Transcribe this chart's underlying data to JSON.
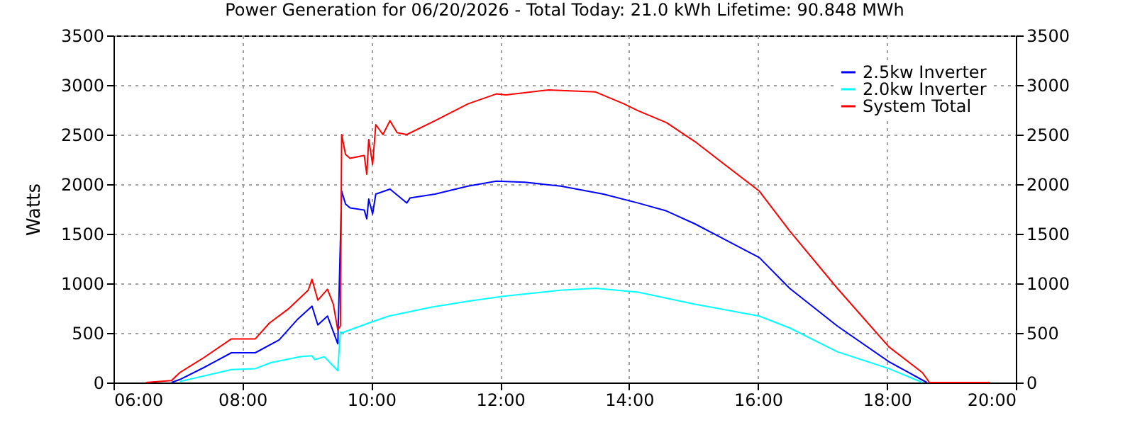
{
  "chart_data": {
    "type": "line",
    "title": "Power Generation for 06/20/2026 - Total Today: 21.0 kWh   Lifetime: 90.848 MWh",
    "ylabel": "Watts",
    "xlim": [
      6,
      20
    ],
    "xticks": [
      {
        "value": 6,
        "label": "06:00"
      },
      {
        "value": 8,
        "label": "08:00"
      },
      {
        "value": 10,
        "label": "10:00"
      },
      {
        "value": 12,
        "label": "12:00"
      },
      {
        "value": 14,
        "label": "14:00"
      },
      {
        "value": 16,
        "label": "16:00"
      },
      {
        "value": 18,
        "label": "18:00"
      },
      {
        "value": 20,
        "label": "20:00"
      }
    ],
    "ylim": [
      0,
      3500
    ],
    "yticks": [
      0,
      500,
      1000,
      1500,
      2000,
      2500,
      3000,
      3500
    ],
    "y2lim": [
      0,
      3500
    ],
    "y2ticks": [
      0,
      500,
      1000,
      1500,
      2000,
      2500,
      3000,
      3500
    ],
    "grid": true,
    "legend": "top right",
    "line_style": "solid",
    "series": [
      {
        "name": "2.5kw Inverter",
        "color": "#0000ff",
        "x": [
          6.9,
          7.03,
          7.4,
          7.83,
          8.2,
          8.57,
          8.86,
          9.08,
          9.17,
          9.32,
          9.48,
          9.54,
          9.6,
          9.67,
          9.89,
          9.93,
          9.96,
          10.02,
          10.07,
          10.29,
          10.55,
          10.6,
          10.99,
          11.5,
          11.94,
          12.38,
          12.94,
          13.6,
          14.14,
          14.58,
          15.02,
          16.02,
          16.49,
          17.23,
          18.03,
          18.62
        ],
        "values": [
          0,
          30,
          150,
          300,
          300,
          430,
          640,
          770,
          580,
          670,
          390,
          1930,
          1800,
          1760,
          1740,
          1650,
          1850,
          1700,
          1900,
          1950,
          1810,
          1860,
          1900,
          1980,
          2030,
          2020,
          1980,
          1900,
          1810,
          1730,
          1600,
          1260,
          950,
          570,
          210,
          0
        ]
      },
      {
        "name": "2.0kw Inverter",
        "color": "#00ffff",
        "x": [
          7.03,
          7.83,
          8.2,
          8.44,
          8.9,
          9.08,
          9.12,
          9.27,
          9.48,
          9.52,
          9.54,
          9.96,
          10.27,
          10.94,
          11.5,
          12.05,
          12.93,
          13.48,
          14.14,
          15.02,
          16.02,
          16.49,
          17.23,
          18.03,
          18.55
        ],
        "values": [
          10,
          130,
          140,
          200,
          260,
          270,
          230,
          260,
          120,
          510,
          500,
          600,
          670,
          760,
          820,
          870,
          930,
          950,
          910,
          790,
          670,
          550,
          310,
          140,
          0
        ]
      },
      {
        "name": "System Total",
        "color": "#ff0000",
        "x": [
          6.5,
          6.9,
          7.03,
          7.4,
          7.83,
          8.2,
          8.42,
          8.71,
          9.02,
          9.08,
          9.17,
          9.32,
          9.41,
          9.48,
          9.52,
          9.54,
          9.6,
          9.67,
          9.89,
          9.93,
          9.96,
          10.02,
          10.07,
          10.18,
          10.29,
          10.4,
          10.55,
          10.99,
          11.5,
          11.94,
          12.09,
          12.75,
          13.48,
          13.92,
          14.14,
          14.58,
          15.02,
          16.02,
          16.49,
          17.23,
          18.03,
          18.55,
          18.66,
          19.2,
          19.6
        ],
        "values": [
          0,
          20,
          100,
          250,
          440,
          440,
          600,
          740,
          930,
          1040,
          830,
          940,
          790,
          530,
          570,
          2500,
          2300,
          2260,
          2290,
          2100,
          2450,
          2200,
          2600,
          2500,
          2640,
          2520,
          2500,
          2640,
          2810,
          2910,
          2900,
          2950,
          2930,
          2810,
          2740,
          2620,
          2430,
          1930,
          1530,
          950,
          360,
          100,
          0,
          0,
          0
        ]
      }
    ]
  }
}
